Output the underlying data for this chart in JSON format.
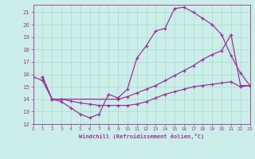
{
  "xlabel": "Windchill (Refroidissement éolien,°C)",
  "bg_color": "#cceee8",
  "grid_color": "#aad8d0",
  "line_color": "#993399",
  "spine_color": "#993399",
  "xmin": 0,
  "xmax": 23,
  "ymin": 12,
  "ymax": 21.6,
  "yticks": [
    12,
    13,
    14,
    15,
    16,
    17,
    18,
    19,
    20,
    21
  ],
  "xticks": [
    0,
    1,
    2,
    3,
    4,
    5,
    6,
    7,
    8,
    9,
    10,
    11,
    12,
    13,
    14,
    15,
    16,
    17,
    18,
    19,
    20,
    21,
    22,
    23
  ],
  "curve1_x": [
    0,
    1,
    2,
    3,
    4,
    5,
    6,
    7,
    8,
    9,
    10,
    11,
    12,
    13,
    14,
    15,
    16,
    17,
    18,
    19,
    20,
    21,
    22,
    23
  ],
  "curve1_y": [
    15.8,
    15.5,
    14.0,
    13.8,
    13.3,
    12.8,
    12.5,
    12.8,
    14.4,
    14.1,
    14.8,
    17.3,
    18.3,
    19.5,
    19.7,
    21.3,
    21.4,
    21.0,
    20.5,
    20.0,
    19.2,
    17.5,
    16.1,
    15.1
  ],
  "curve2_x": [
    1,
    2,
    3,
    4,
    5,
    6,
    7,
    8,
    9,
    10,
    11,
    12,
    13,
    14,
    15,
    16,
    17,
    18,
    19,
    20,
    21,
    22,
    23
  ],
  "curve2_y": [
    15.8,
    14.0,
    14.0,
    13.85,
    13.7,
    13.6,
    13.5,
    13.5,
    13.5,
    13.5,
    13.6,
    13.8,
    14.1,
    14.4,
    14.6,
    14.8,
    15.0,
    15.1,
    15.2,
    15.3,
    15.4,
    15.0,
    15.1
  ],
  "curve3_x": [
    1,
    2,
    3,
    9,
    10,
    11,
    12,
    13,
    14,
    15,
    16,
    17,
    18,
    19,
    20,
    21,
    22,
    23
  ],
  "curve3_y": [
    15.8,
    14.0,
    14.0,
    14.0,
    14.2,
    14.5,
    14.8,
    15.1,
    15.5,
    15.9,
    16.3,
    16.7,
    17.2,
    17.6,
    17.9,
    19.2,
    15.1,
    15.1
  ]
}
